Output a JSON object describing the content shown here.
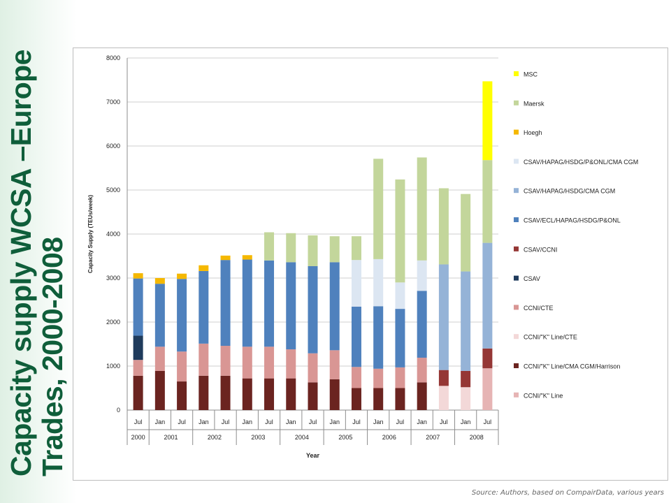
{
  "slide": {
    "title_line1": "Capacity supply  WCSA –Europe",
    "title_line2": "Trades, 2000-2008"
  },
  "source_note": "Source: Authors, based on CompairData, various years",
  "chart_data": {
    "type": "bar",
    "stacked": true,
    "title": "",
    "xlabel": "Year",
    "ylabel": "Capacity Supply (TEUs/week)",
    "ylim": [
      0,
      8000
    ],
    "yticks": [
      0,
      1000,
      2000,
      3000,
      4000,
      5000,
      6000,
      7000,
      8000
    ],
    "grid": true,
    "legend_position": "right",
    "categories": [
      "Jul",
      "Jan",
      "Jul",
      "Jan",
      "Jul",
      "Jan",
      "Jul",
      "Jan",
      "Jul",
      "Jan",
      "Jul",
      "Jan",
      "Jul",
      "Jan",
      "Jul",
      "Jan",
      "Jul"
    ],
    "year_groups": [
      {
        "label": "2000",
        "span": 1
      },
      {
        "label": "2001",
        "span": 2
      },
      {
        "label": "2002",
        "span": 2
      },
      {
        "label": "2003",
        "span": 2
      },
      {
        "label": "2004",
        "span": 2
      },
      {
        "label": "2005",
        "span": 2
      },
      {
        "label": "2006",
        "span": 2
      },
      {
        "label": "2007",
        "span": 2
      },
      {
        "label": "2008",
        "span": 2
      }
    ],
    "series": [
      {
        "name": "CCNI/\"K\" Line",
        "color": "#e6b4b4",
        "values": [
          0,
          0,
          0,
          0,
          0,
          0,
          0,
          0,
          0,
          0,
          0,
          0,
          0,
          0,
          0,
          0,
          950
        ]
      },
      {
        "name": "CCNI/\"K\" Line/CMA CGM/Harrison",
        "color": "#6b2420",
        "values": [
          780,
          890,
          650,
          780,
          780,
          720,
          720,
          720,
          630,
          700,
          500,
          500,
          500,
          630,
          0,
          0,
          0
        ]
      },
      {
        "name": "CCNI/\"K\" Line/CTE",
        "color": "#f3d8d8",
        "values": [
          0,
          0,
          0,
          0,
          0,
          0,
          0,
          0,
          0,
          0,
          0,
          0,
          0,
          0,
          550,
          520,
          0
        ]
      },
      {
        "name": "CCNI/CTE",
        "color": "#d99694",
        "values": [
          360,
          550,
          680,
          730,
          680,
          720,
          720,
          660,
          660,
          660,
          480,
          440,
          470,
          560,
          0,
          0,
          0
        ]
      },
      {
        "name": "CSAV",
        "color": "#1f3b5c",
        "values": [
          550,
          0,
          0,
          0,
          0,
          0,
          0,
          0,
          0,
          0,
          0,
          0,
          0,
          0,
          0,
          0,
          0
        ]
      },
      {
        "name": "CSAV/CCNI",
        "color": "#953735",
        "values": [
          0,
          0,
          0,
          0,
          0,
          0,
          0,
          0,
          0,
          0,
          0,
          0,
          0,
          0,
          360,
          370,
          450
        ]
      },
      {
        "name": "CSAV/ECL/HAPAG/HSDG/P&ONL",
        "color": "#4f81bd",
        "values": [
          1300,
          1430,
          1650,
          1650,
          1950,
          1980,
          1960,
          1980,
          1980,
          2000,
          1370,
          1420,
          1330,
          1520,
          0,
          0,
          0
        ]
      },
      {
        "name": "CSAV/HAPAG/HSDG/CMA CGM",
        "color": "#95b3d7",
        "values": [
          0,
          0,
          0,
          0,
          0,
          0,
          0,
          0,
          0,
          0,
          0,
          0,
          0,
          0,
          2400,
          2260,
          2400
        ]
      },
      {
        "name": "CSAV/HAPAG/HSDG/P&ONL/CMA CGM",
        "color": "#dce6f2",
        "values": [
          0,
          0,
          0,
          0,
          0,
          0,
          0,
          0,
          0,
          0,
          1060,
          1070,
          600,
          690,
          0,
          0,
          0
        ]
      },
      {
        "name": "Hoegh",
        "color": "#f5b800",
        "values": [
          120,
          130,
          120,
          130,
          100,
          100,
          0,
          0,
          0,
          0,
          0,
          0,
          0,
          0,
          0,
          0,
          0
        ]
      },
      {
        "name": "Maersk",
        "color": "#c3d69b",
        "values": [
          0,
          0,
          0,
          0,
          0,
          0,
          640,
          660,
          700,
          590,
          540,
          2280,
          2340,
          2340,
          1730,
          1760,
          1880
        ]
      },
      {
        "name": "MSC",
        "color": "#ffff00",
        "values": [
          0,
          0,
          0,
          0,
          0,
          0,
          0,
          0,
          0,
          0,
          0,
          0,
          0,
          0,
          0,
          0,
          1790
        ]
      }
    ]
  }
}
